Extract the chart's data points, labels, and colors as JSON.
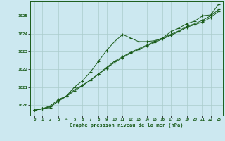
{
  "background_color": "#cce8f0",
  "grid_color": "#aacccc",
  "line_color": "#1a5c1a",
  "title": "Graphe pression niveau de la mer (hPa)",
  "xlim": [
    -0.5,
    23.5
  ],
  "ylim": [
    1019.4,
    1025.8
  ],
  "yticks": [
    1020,
    1021,
    1022,
    1023,
    1024,
    1025
  ],
  "xticks": [
    0,
    1,
    2,
    3,
    4,
    5,
    6,
    7,
    8,
    9,
    10,
    11,
    12,
    13,
    14,
    15,
    16,
    17,
    18,
    19,
    20,
    21,
    22,
    23
  ],
  "series1": [
    [
      0,
      1019.7
    ],
    [
      1,
      1019.78
    ],
    [
      2,
      1019.85
    ],
    [
      3,
      1020.25
    ],
    [
      4,
      1020.5
    ],
    [
      5,
      1021.0
    ],
    [
      6,
      1021.35
    ],
    [
      7,
      1021.85
    ],
    [
      8,
      1022.45
    ],
    [
      9,
      1023.05
    ],
    [
      10,
      1023.55
    ],
    [
      11,
      1023.95
    ],
    [
      12,
      1023.75
    ],
    [
      13,
      1023.55
    ],
    [
      14,
      1023.55
    ],
    [
      15,
      1023.6
    ],
    [
      16,
      1023.75
    ],
    [
      17,
      1024.1
    ],
    [
      18,
      1024.3
    ],
    [
      19,
      1024.55
    ],
    [
      20,
      1024.7
    ],
    [
      21,
      1025.0
    ],
    [
      22,
      1025.05
    ],
    [
      23,
      1025.65
    ]
  ],
  "series2": [
    [
      0,
      1019.7
    ],
    [
      1,
      1019.78
    ],
    [
      2,
      1019.95
    ],
    [
      3,
      1020.3
    ],
    [
      4,
      1020.5
    ],
    [
      5,
      1020.85
    ],
    [
      6,
      1021.1
    ],
    [
      7,
      1021.4
    ],
    [
      8,
      1021.75
    ],
    [
      9,
      1022.1
    ],
    [
      10,
      1022.45
    ],
    [
      11,
      1022.7
    ],
    [
      12,
      1022.95
    ],
    [
      13,
      1023.15
    ],
    [
      14,
      1023.35
    ],
    [
      15,
      1023.55
    ],
    [
      16,
      1023.75
    ],
    [
      17,
      1023.95
    ],
    [
      18,
      1024.15
    ],
    [
      19,
      1024.4
    ],
    [
      20,
      1024.55
    ],
    [
      21,
      1024.75
    ],
    [
      22,
      1025.0
    ],
    [
      23,
      1025.35
    ]
  ],
  "series3": [
    [
      0,
      1019.7
    ],
    [
      1,
      1019.78
    ],
    [
      2,
      1019.9
    ],
    [
      3,
      1020.2
    ],
    [
      4,
      1020.48
    ],
    [
      5,
      1020.78
    ],
    [
      6,
      1021.08
    ],
    [
      7,
      1021.38
    ],
    [
      8,
      1021.72
    ],
    [
      9,
      1022.05
    ],
    [
      10,
      1022.38
    ],
    [
      11,
      1022.65
    ],
    [
      12,
      1022.9
    ],
    [
      13,
      1023.1
    ],
    [
      14,
      1023.3
    ],
    [
      15,
      1023.5
    ],
    [
      16,
      1023.7
    ],
    [
      17,
      1023.9
    ],
    [
      18,
      1024.1
    ],
    [
      19,
      1024.35
    ],
    [
      20,
      1024.5
    ],
    [
      21,
      1024.65
    ],
    [
      22,
      1024.9
    ],
    [
      23,
      1025.25
    ]
  ]
}
